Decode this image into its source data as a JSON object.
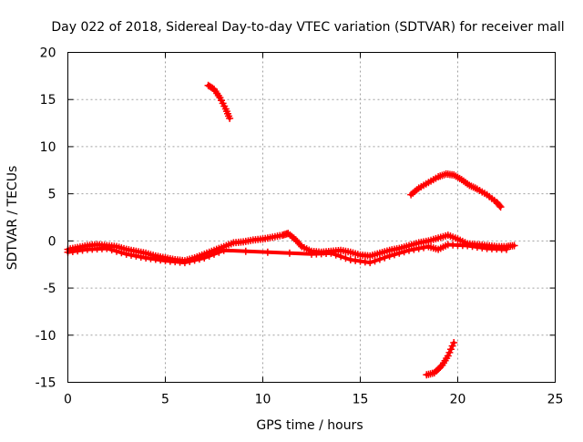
{
  "chart_data": {
    "type": "scatter",
    "title": "Day 022 of 2018, Sidereal Day-to-day VTEC variation (SDTVAR) for receiver mall",
    "xlabel": "GPS time / hours",
    "ylabel": "SDTVAR / TECUs",
    "xlim": [
      0,
      25
    ],
    "ylim": [
      -15,
      20
    ],
    "xticks": [
      0,
      5,
      10,
      15,
      20,
      25
    ],
    "yticks": [
      -15,
      -10,
      -5,
      0,
      5,
      10,
      15,
      20
    ],
    "grid": true,
    "marker": "+",
    "color": "#ff0000",
    "series": [
      {
        "name": "main-band",
        "points": [
          [
            0,
            -0.9
          ],
          [
            0.5,
            -0.7
          ],
          [
            1,
            -0.5
          ],
          [
            1.5,
            -0.4
          ],
          [
            2,
            -0.5
          ],
          [
            2.5,
            -0.6
          ],
          [
            3,
            -0.9
          ],
          [
            3.5,
            -1.1
          ],
          [
            4,
            -1.3
          ],
          [
            4.5,
            -1.6
          ],
          [
            5,
            -1.8
          ],
          [
            5.5,
            -2.0
          ],
          [
            6,
            -2.1
          ],
          [
            6.5,
            -1.8
          ],
          [
            7,
            -1.4
          ],
          [
            7.5,
            -1.0
          ],
          [
            8,
            -0.6
          ],
          [
            8.5,
            -0.2
          ],
          [
            9,
            -0.1
          ],
          [
            9.5,
            0.1
          ],
          [
            10,
            0.2
          ],
          [
            10.5,
            0.4
          ],
          [
            11,
            0.6
          ],
          [
            11.3,
            0.8
          ],
          [
            11.7,
            0.1
          ],
          [
            12,
            -0.6
          ],
          [
            12.5,
            -1.1
          ],
          [
            13,
            -1.2
          ],
          [
            13.5,
            -1.1
          ],
          [
            14,
            -1.0
          ],
          [
            14.5,
            -1.2
          ],
          [
            15,
            -1.5
          ],
          [
            15.5,
            -1.6
          ],
          [
            16,
            -1.3
          ],
          [
            16.5,
            -1.0
          ],
          [
            17,
            -0.8
          ],
          [
            17.5,
            -0.5
          ],
          [
            18,
            -0.2
          ],
          [
            18.5,
            0
          ],
          [
            19,
            0.3
          ],
          [
            19.5,
            0.6
          ],
          [
            20,
            0.2
          ],
          [
            20.5,
            -0.3
          ],
          [
            21,
            -0.4
          ],
          [
            21.5,
            -0.5
          ],
          [
            22,
            -0.6
          ],
          [
            22.5,
            -0.6
          ],
          [
            22.9,
            -0.5
          ]
        ]
      },
      {
        "name": "main-band-lower",
        "points": [
          [
            0,
            -1.2
          ],
          [
            1,
            -0.9
          ],
          [
            2,
            -0.8
          ],
          [
            3,
            -1.4
          ],
          [
            4,
            -1.8
          ],
          [
            5,
            -2.1
          ],
          [
            6,
            -2.3
          ],
          [
            7,
            -1.8
          ],
          [
            8,
            -1.0
          ],
          [
            12.5,
            -1.4
          ],
          [
            13.5,
            -1.3
          ],
          [
            14.5,
            -2.0
          ],
          [
            15.5,
            -2.3
          ],
          [
            16.5,
            -1.6
          ],
          [
            17.5,
            -1.0
          ],
          [
            18.5,
            -0.6
          ],
          [
            19,
            -0.9
          ],
          [
            19.5,
            -0.4
          ],
          [
            20.5,
            -0.5
          ],
          [
            21.5,
            -0.8
          ],
          [
            22.5,
            -0.9
          ]
        ]
      },
      {
        "name": "arc-high",
        "points": [
          [
            7.2,
            16.5
          ],
          [
            7.5,
            16.1
          ],
          [
            7.8,
            15.2
          ],
          [
            8.1,
            14.0
          ],
          [
            8.3,
            13.0
          ]
        ]
      },
      {
        "name": "arc-positive",
        "points": [
          [
            17.6,
            4.9
          ],
          [
            18,
            5.6
          ],
          [
            18.5,
            6.2
          ],
          [
            19,
            6.8
          ],
          [
            19.4,
            7.1
          ],
          [
            19.8,
            7.0
          ],
          [
            20.2,
            6.5
          ],
          [
            20.6,
            5.9
          ],
          [
            21,
            5.5
          ],
          [
            21.5,
            4.9
          ],
          [
            22,
            4.1
          ],
          [
            22.2,
            3.6
          ]
        ]
      },
      {
        "name": "arc-low",
        "points": [
          [
            18.4,
            -14.2
          ],
          [
            18.8,
            -14.0
          ],
          [
            19.2,
            -13.2
          ],
          [
            19.5,
            -12.2
          ],
          [
            19.8,
            -10.8
          ]
        ]
      }
    ]
  }
}
